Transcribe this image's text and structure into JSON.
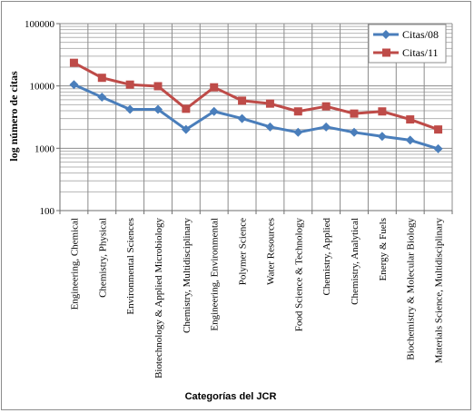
{
  "chart_data": {
    "type": "line",
    "title": "",
    "ylabel": "log número de citas",
    "xlabel": "Categorías del JCR",
    "yscale": "log",
    "ylim": [
      100,
      100000
    ],
    "yticks": [
      "100",
      "1000",
      "10000",
      "100000"
    ],
    "grid": true,
    "legend_position": "top-right",
    "categories": [
      "Engineering, Chemical",
      "Chemistry, Physical",
      "Environmental Sciences",
      "Biotechnology & Applied Microbiology",
      "Chemistry, Multidisciplinary",
      "Engineering, Environmental",
      "Polymer Science",
      "Water Resources",
      "Food Science & Technology",
      "Chemistry, Applied",
      "Chemistry, Analytical",
      "Energy & Fuels",
      "Biochemistry & Molecular Biology",
      "Materials Science, Multidisciplinary"
    ],
    "series": [
      {
        "name": "Citas/08",
        "color": "#4a7ebb",
        "marker": "diamond",
        "values": [
          10500,
          6600,
          4200,
          4200,
          2000,
          3900,
          3000,
          2200,
          1800,
          2200,
          1800,
          1550,
          1350,
          980
        ]
      },
      {
        "name": "Citas/11",
        "color": "#be4b48",
        "marker": "square",
        "values": [
          23500,
          13500,
          10500,
          9900,
          4300,
          9500,
          5800,
          5200,
          3900,
          4700,
          3600,
          3900,
          2900,
          2000
        ]
      }
    ]
  }
}
